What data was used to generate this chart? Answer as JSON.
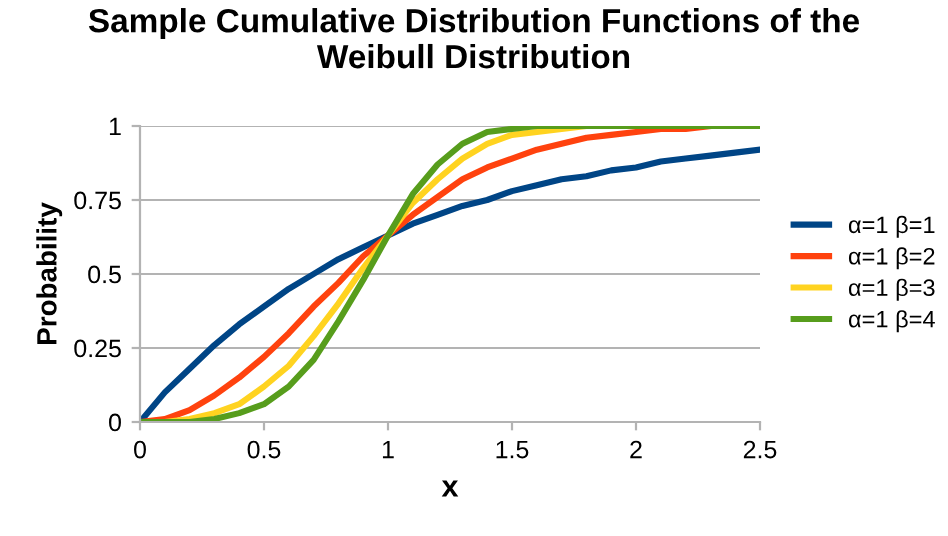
{
  "chart_data": {
    "type": "line",
    "title": "Sample Cumulative Distribution Functions of the\nWeibull Distribution",
    "xlabel": "x",
    "ylabel": "Probability",
    "x": [
      0,
      0.1,
      0.2,
      0.3,
      0.4,
      0.5,
      0.6,
      0.7,
      0.8,
      0.9,
      1,
      1.1,
      1.2,
      1.3,
      1.4,
      1.5,
      1.6,
      1.7,
      1.8,
      1.9,
      2,
      2.1,
      2.2,
      2.3,
      2.4,
      2.5
    ],
    "series": [
      {
        "name": "α=1 β=1",
        "color": "#004586",
        "values": [
          0,
          0.1,
          0.18,
          0.26,
          0.33,
          0.39,
          0.45,
          0.5,
          0.55,
          0.59,
          0.63,
          0.67,
          0.7,
          0.73,
          0.75,
          0.78,
          0.8,
          0.82,
          0.83,
          0.85,
          0.86,
          0.88,
          0.89,
          0.9,
          0.91,
          0.92
        ]
      },
      {
        "name": "α=1 β=2",
        "color": "#ff420e",
        "values": [
          0,
          0.01,
          0.04,
          0.09,
          0.15,
          0.22,
          0.3,
          0.39,
          0.47,
          0.56,
          0.63,
          0.7,
          0.76,
          0.82,
          0.86,
          0.89,
          0.92,
          0.94,
          0.96,
          0.97,
          0.98,
          0.99,
          0.99,
          1,
          null,
          null
        ]
      },
      {
        "name": "α=1 β=3",
        "color": "#ffd320",
        "values": [
          0,
          0,
          0.01,
          0.03,
          0.06,
          0.12,
          0.19,
          0.29,
          0.4,
          0.52,
          0.63,
          0.74,
          0.82,
          0.89,
          0.94,
          0.97,
          0.98,
          0.99,
          1,
          1,
          null,
          null,
          null,
          null,
          null,
          null
        ]
      },
      {
        "name": "α=1 β=4",
        "color": "#579d1c",
        "values": [
          0,
          0,
          0,
          0.01,
          0.03,
          0.06,
          0.12,
          0.21,
          0.34,
          0.48,
          0.63,
          0.77,
          0.87,
          0.94,
          0.98,
          0.99,
          1,
          1,
          1,
          1,
          1,
          1,
          1,
          1,
          1,
          1
        ]
      }
    ],
    "xlim": [
      0,
      2.5
    ],
    "xticks": [
      0,
      0.5,
      1,
      1.5,
      2,
      2.5
    ],
    "ylim": [
      0,
      1
    ],
    "yticks": [
      0,
      0.25,
      0.5,
      0.75,
      1
    ],
    "grid": "y",
    "legend": "right",
    "marker": "none",
    "line_style": "solid"
  }
}
